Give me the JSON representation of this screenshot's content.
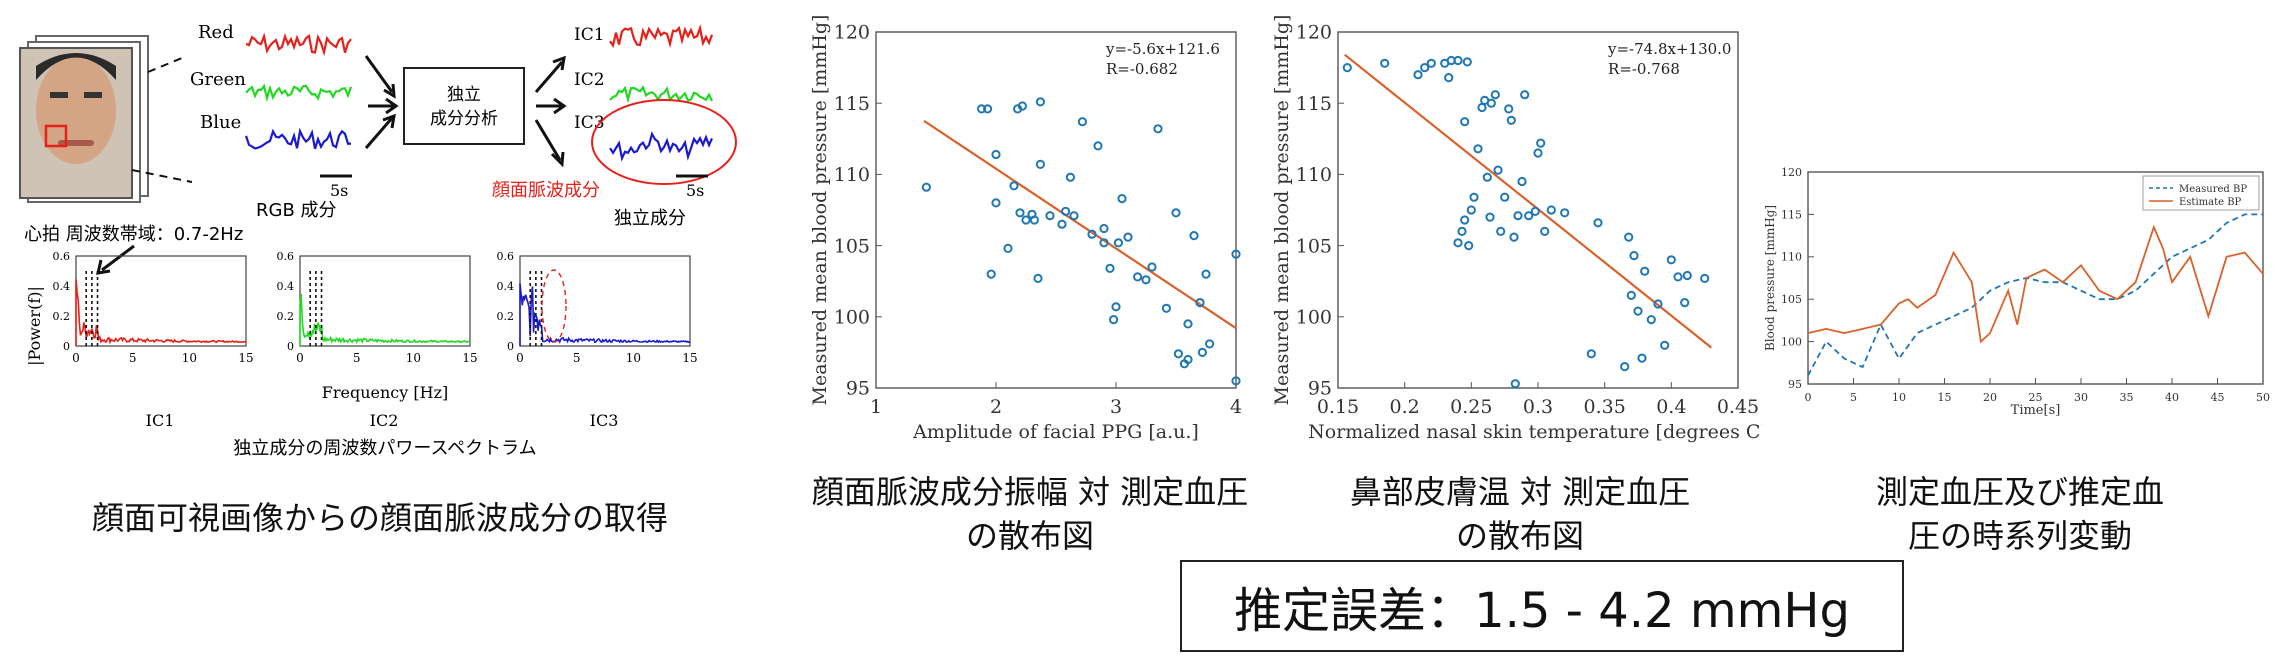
{
  "left_panel": {
    "channels": {
      "red": "Red",
      "green": "Green",
      "blue": "Blue"
    },
    "rgb_label": "RGB 成分",
    "ica_box": [
      "独立",
      "成分分析"
    ],
    "ic_labels": [
      "IC1",
      "IC2",
      "IC3"
    ],
    "scale_label": "5s",
    "face_pulse_label": "顔面脈波成分",
    "independent_label": "独立成分",
    "heart_band_label": "心拍 周波数帯域：0.7-2Hz",
    "spectrum": {
      "ylabel": "|Power(f)|",
      "xlabel": "Frequency [Hz]",
      "xticks": [
        "0",
        "5",
        "10",
        "15"
      ],
      "yticks": [
        "0",
        "0.2",
        "0.4",
        "0.6"
      ],
      "plots": [
        "IC1",
        "IC2",
        "IC3"
      ],
      "title": "独立成分の周波数パワースペクトラム"
    },
    "caption": "顔面可視画像からの顔面脈波成分の取得"
  },
  "colors": {
    "red": "#e8201a",
    "green": "#22d822",
    "blue": "#1a1ad0",
    "marker": "#1f77b4",
    "fit": "#d9622b"
  },
  "chart_data": [
    {
      "type": "scatter",
      "title": "",
      "xlabel": "Amplitude of facial PPG [a.u.]",
      "ylabel": "Measured mean blood pressure [mmHg]",
      "xlim": [
        1,
        4
      ],
      "ylim": [
        95,
        120
      ],
      "xticks": [
        "1",
        "2",
        "3",
        "4"
      ],
      "yticks": [
        "95",
        "100",
        "105",
        "110",
        "115",
        "120"
      ],
      "annotation": [
        "y=-5.6x+121.6",
        "R=-0.682"
      ],
      "fit": {
        "slope": -5.6,
        "intercept": 121.6,
        "x_range": [
          1.4,
          4.0
        ]
      },
      "points": [
        [
          1.42,
          109.1
        ],
        [
          1.88,
          114.6
        ],
        [
          1.93,
          114.6
        ],
        [
          1.96,
          103.0
        ],
        [
          2.0,
          111.4
        ],
        [
          2.0,
          108.0
        ],
        [
          2.1,
          104.8
        ],
        [
          2.15,
          109.2
        ],
        [
          2.18,
          114.6
        ],
        [
          2.22,
          114.8
        ],
        [
          2.2,
          107.3
        ],
        [
          2.25,
          106.8
        ],
        [
          2.3,
          107.2
        ],
        [
          2.32,
          106.8
        ],
        [
          2.35,
          102.7
        ],
        [
          2.37,
          110.7
        ],
        [
          2.37,
          115.1
        ],
        [
          2.45,
          107.1
        ],
        [
          2.55,
          106.5
        ],
        [
          2.58,
          107.4
        ],
        [
          2.62,
          109.8
        ],
        [
          2.65,
          107.1
        ],
        [
          2.72,
          113.7
        ],
        [
          2.8,
          105.8
        ],
        [
          2.85,
          112.0
        ],
        [
          2.9,
          106.2
        ],
        [
          2.9,
          105.2
        ],
        [
          2.95,
          103.4
        ],
        [
          2.98,
          99.8
        ],
        [
          3.0,
          100.7
        ],
        [
          3.02,
          105.2
        ],
        [
          3.05,
          108.3
        ],
        [
          3.1,
          105.6
        ],
        [
          3.18,
          102.8
        ],
        [
          3.25,
          102.6
        ],
        [
          3.3,
          103.5
        ],
        [
          3.35,
          113.2
        ],
        [
          3.42,
          100.6
        ],
        [
          3.5,
          107.3
        ],
        [
          3.52,
          97.4
        ],
        [
          3.57,
          96.7
        ],
        [
          3.6,
          97.0
        ],
        [
          3.65,
          105.7
        ],
        [
          3.7,
          101.0
        ],
        [
          3.75,
          103.0
        ],
        [
          3.72,
          97.5
        ],
        [
          3.78,
          98.1
        ],
        [
          3.6,
          99.5
        ],
        [
          4.0,
          104.4
        ],
        [
          4.0,
          95.5
        ]
      ]
    },
    {
      "type": "scatter",
      "title": "",
      "xlabel": "Normalized nasal skin temperature [degrees C]",
      "ylabel": "Measured mean blood pressure [mmHg]",
      "xlim": [
        0.15,
        0.45
      ],
      "ylim": [
        95,
        120
      ],
      "xticks": [
        "0.15",
        "0.2",
        "0.25",
        "0.3",
        "0.35",
        "0.4",
        "0.45"
      ],
      "yticks": [
        "95",
        "100",
        "105",
        "110",
        "115",
        "120"
      ],
      "annotation": [
        "y=-74.8x+130.0",
        "R=-0.768"
      ],
      "fit": {
        "slope": -74.8,
        "intercept": 130.0,
        "x_range": [
          0.155,
          0.43
        ]
      },
      "points": [
        [
          0.157,
          117.5
        ],
        [
          0.185,
          117.8
        ],
        [
          0.21,
          117.0
        ],
        [
          0.215,
          117.5
        ],
        [
          0.22,
          117.8
        ],
        [
          0.23,
          117.8
        ],
        [
          0.233,
          116.8
        ],
        [
          0.235,
          118.0
        ],
        [
          0.24,
          118.0
        ],
        [
          0.245,
          113.7
        ],
        [
          0.247,
          117.9
        ],
        [
          0.24,
          105.2
        ],
        [
          0.243,
          106.0
        ],
        [
          0.245,
          106.8
        ],
        [
          0.248,
          105.0
        ],
        [
          0.25,
          107.5
        ],
        [
          0.252,
          108.4
        ],
        [
          0.255,
          111.8
        ],
        [
          0.258,
          114.7
        ],
        [
          0.26,
          115.2
        ],
        [
          0.262,
          109.8
        ],
        [
          0.264,
          107.0
        ],
        [
          0.265,
          115.0
        ],
        [
          0.268,
          115.6
        ],
        [
          0.27,
          110.3
        ],
        [
          0.272,
          106.0
        ],
        [
          0.275,
          108.4
        ],
        [
          0.278,
          114.6
        ],
        [
          0.28,
          113.8
        ],
        [
          0.282,
          105.6
        ],
        [
          0.285,
          107.1
        ],
        [
          0.288,
          109.5
        ],
        [
          0.29,
          115.6
        ],
        [
          0.293,
          107.1
        ],
        [
          0.298,
          107.4
        ],
        [
          0.3,
          111.5
        ],
        [
          0.302,
          112.2
        ],
        [
          0.305,
          106.0
        ],
        [
          0.31,
          107.5
        ],
        [
          0.32,
          107.3
        ],
        [
          0.283,
          95.3
        ],
        [
          0.34,
          97.4
        ],
        [
          0.345,
          106.6
        ],
        [
          0.365,
          96.5
        ],
        [
          0.368,
          105.6
        ],
        [
          0.37,
          101.5
        ],
        [
          0.372,
          104.3
        ],
        [
          0.375,
          100.4
        ],
        [
          0.378,
          97.1
        ],
        [
          0.38,
          103.2
        ],
        [
          0.385,
          99.8
        ],
        [
          0.39,
          100.9
        ],
        [
          0.395,
          98.0
        ],
        [
          0.4,
          104.0
        ],
        [
          0.405,
          102.8
        ],
        [
          0.41,
          101.0
        ],
        [
          0.412,
          102.9
        ],
        [
          0.425,
          102.7
        ]
      ]
    },
    {
      "type": "line",
      "title": "",
      "xlabel": "Time[s]",
      "ylabel": "Blood pressure [mmHg]",
      "xlim": [
        0,
        50
      ],
      "ylim": [
        95,
        120
      ],
      "xticks": [
        "0",
        "5",
        "10",
        "15",
        "20",
        "25",
        "30",
        "35",
        "40",
        "45",
        "50"
      ],
      "yticks": [
        "95",
        "100",
        "105",
        "110",
        "115",
        "120"
      ],
      "legend": "top-right",
      "series": [
        {
          "name": "Measured BP",
          "style": "dashed",
          "x": [
            0,
            2,
            4,
            6,
            8,
            10,
            12,
            14,
            16,
            18,
            20,
            22,
            24,
            26,
            28,
            30,
            32,
            34,
            36,
            38,
            40,
            42,
            44,
            46,
            48,
            50
          ],
          "y": [
            96,
            100,
            98,
            97,
            102,
            98,
            101,
            102,
            103,
            104,
            106,
            107,
            107.5,
            107,
            107,
            106,
            105,
            105,
            106,
            108,
            110,
            111,
            112,
            114,
            115,
            115
          ]
        },
        {
          "name": "Estimate BP",
          "style": "solid",
          "x": [
            0,
            2,
            4,
            6,
            8,
            10,
            11,
            12,
            14,
            16,
            18,
            19,
            20,
            22,
            23,
            24,
            26,
            28,
            30,
            32,
            34,
            36,
            38,
            39,
            40,
            42,
            44,
            46,
            48,
            50
          ],
          "y": [
            101,
            101.5,
            101,
            101.5,
            102,
            104.5,
            105,
            104,
            105.5,
            110.5,
            107,
            100,
            101,
            106,
            102,
            107.5,
            108.5,
            107,
            109,
            106,
            105,
            107,
            113.5,
            111,
            107,
            110,
            103,
            110,
            110.5,
            108
          ]
        }
      ]
    }
  ],
  "center_captions": [
    "顔面脈波成分振幅 対 測定血圧",
    "の散布図"
  ],
  "mid_captions": [
    "鼻部皮膚温 対 測定血圧",
    "の散布図"
  ],
  "right_captions": [
    "測定血圧及び推定血",
    "圧の時系列変動"
  ],
  "bottom_box": "推定誤差：1.5 - 4.2 mmHg"
}
